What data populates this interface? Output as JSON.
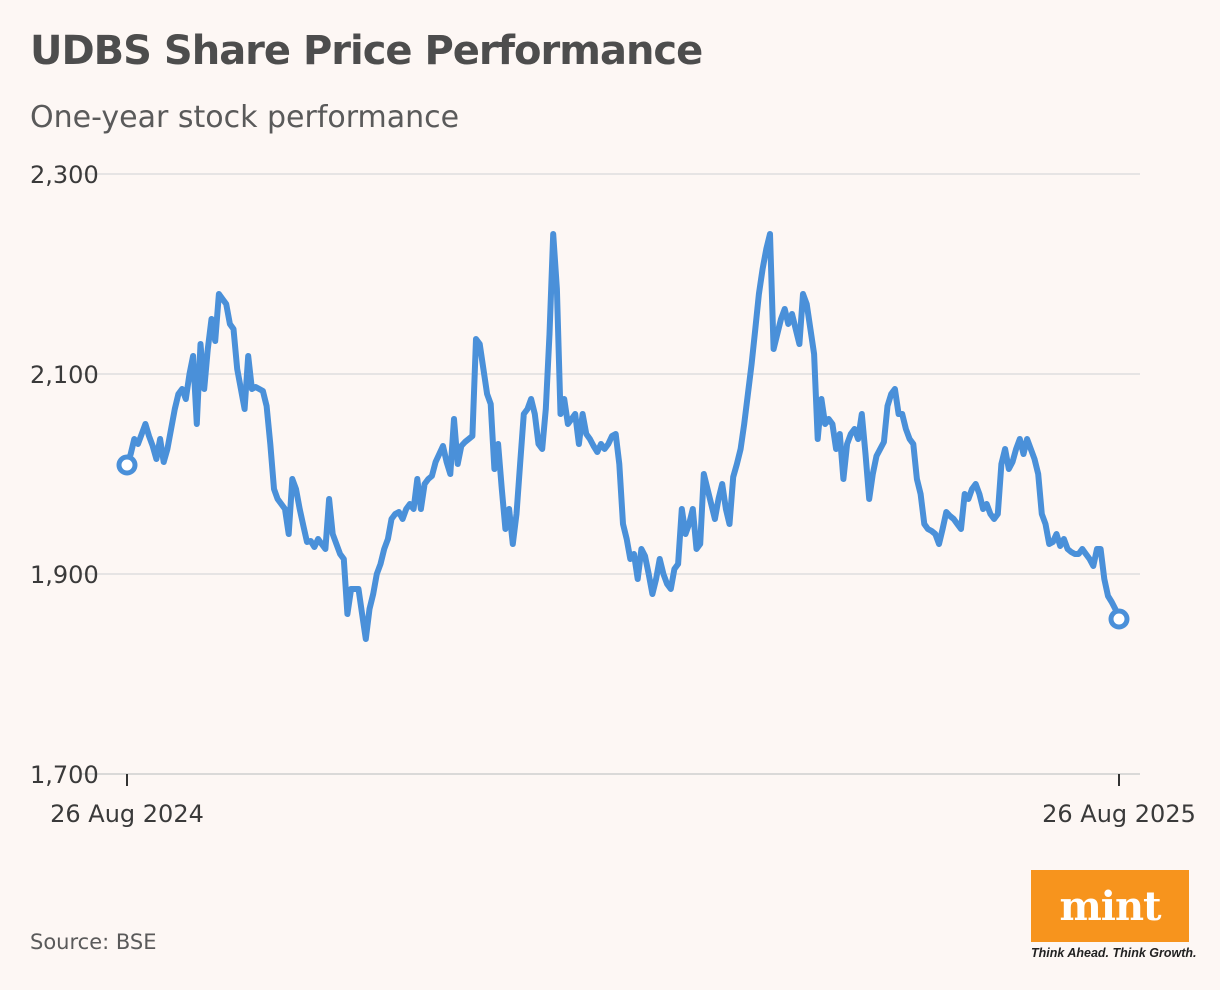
{
  "header": {
    "title": "UDBS Share Price Performance",
    "subtitle": "One-year stock performance"
  },
  "footer": {
    "source": "Source: BSE",
    "logo_text": "mint",
    "tagline": "Think Ahead. Think Growth."
  },
  "colors": {
    "line": "#4a90d9",
    "grid": "#dedede",
    "logo": "#f7941d",
    "background": "#fdf7f4"
  },
  "chart_data": {
    "type": "line",
    "title": "UDBS Share Price Performance",
    "subtitle": "One-year stock performance",
    "xlabel": "",
    "ylabel": "",
    "ylim": [
      1700,
      2300
    ],
    "yticks": [
      1700,
      1900,
      2100,
      2300
    ],
    "ytick_labels": [
      "1,700",
      "1,900",
      "2,100",
      "2,300"
    ],
    "grid": true,
    "x_start_label": "26 Aug 2024",
    "x_end_label": "26 Aug 2025",
    "x_start": "2024-08-26",
    "x_end": "2025-08-26",
    "series": [
      {
        "values": [
          2009,
          2020,
          2035,
          2030,
          2040,
          2050,
          2038,
          2028,
          2015,
          2035,
          2012,
          2025,
          2045,
          2065,
          2080,
          2085,
          2075,
          2100,
          2118,
          2050,
          2130,
          2085,
          2125,
          2155,
          2133,
          2180,
          2175,
          2170,
          2150,
          2145,
          2105,
          2085,
          2065,
          2118,
          2085,
          2087,
          2085,
          2083,
          2068,
          2030,
          1985,
          1975,
          1970,
          1965,
          1940,
          1995,
          1985,
          1965,
          1948,
          1932,
          1933,
          1927,
          1935,
          1930,
          1925,
          1975,
          1940,
          1930,
          1920,
          1915,
          1860,
          1885,
          1885,
          1885,
          1860,
          1835,
          1865,
          1880,
          1900,
          1910,
          1925,
          1935,
          1955,
          1960,
          1962,
          1955,
          1965,
          1970,
          1965,
          1995,
          1965,
          1990,
          1995,
          1998,
          2012,
          2020,
          2028,
          2012,
          2000,
          2055,
          2010,
          2028,
          2032,
          2035,
          2038,
          2135,
          2130,
          2105,
          2080,
          2070,
          2005,
          2030,
          1985,
          1945,
          1965,
          1930,
          1960,
          2010,
          2060,
          2065,
          2075,
          2060,
          2030,
          2025,
          2065,
          2140,
          2240,
          2185,
          2060,
          2075,
          2050,
          2055,
          2060,
          2030,
          2060,
          2040,
          2035,
          2028,
          2022,
          2030,
          2025,
          2030,
          2038,
          2040,
          2010,
          1950,
          1935,
          1915,
          1920,
          1895,
          1925,
          1918,
          1900,
          1880,
          1895,
          1915,
          1900,
          1890,
          1885,
          1905,
          1910,
          1965,
          1940,
          1950,
          1965,
          1925,
          1930,
          2000,
          1985,
          1970,
          1955,
          1975,
          1990,
          1965,
          1950,
          1997,
          2010,
          2025,
          2050,
          2080,
          2110,
          2145,
          2180,
          2205,
          2225,
          2240,
          2125,
          2140,
          2155,
          2165,
          2150,
          2160,
          2145,
          2130,
          2180,
          2170,
          2145,
          2120,
          2035,
          2075,
          2050,
          2055,
          2050,
          2025,
          2040,
          1995,
          2030,
          2040,
          2045,
          2035,
          2060,
          2020,
          1975,
          2000,
          2018,
          2025,
          2032,
          2068,
          2080,
          2085,
          2060,
          2060,
          2045,
          2035,
          2030,
          1995,
          1980,
          1950,
          1945,
          1943,
          1940,
          1930,
          1945,
          1962,
          1958,
          1955,
          1950,
          1945,
          1980,
          1975,
          1985,
          1990,
          1980,
          1965,
          1970,
          1960,
          1955,
          1960,
          2010,
          2025,
          2005,
          2012,
          2025,
          2035,
          2020,
          2035,
          2025,
          2015,
          2000,
          1960,
          1950,
          1930,
          1932,
          1940,
          1928,
          1935,
          1925,
          1922,
          1920,
          1920,
          1925,
          1920,
          1915,
          1908,
          1925,
          1925,
          1895,
          1878,
          1872,
          1865,
          1855
        ]
      }
    ]
  }
}
